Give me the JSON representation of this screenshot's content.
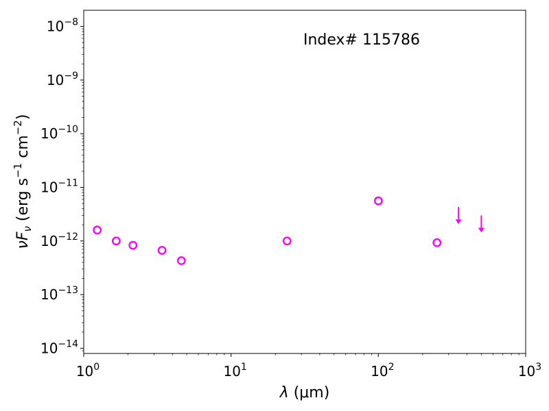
{
  "chart_data": {
    "type": "scatter",
    "annotation": "Index# 115786",
    "xlabel": {
      "symbol": "λ",
      "unit": " (μm)"
    },
    "ylabel": {
      "main": "νF",
      "sub": "ν",
      "unit_prefix": " (erg s",
      "exp1": "−1",
      "unit_mid": " cm",
      "exp2": "−2",
      "unit_suffix": ")"
    },
    "xscale": "log",
    "yscale": "log",
    "xlim": [
      1,
      1000
    ],
    "ylim": [
      8e-15,
      2e-08
    ],
    "x_ticks": [
      {
        "value": 1,
        "base": "10",
        "exp": "0"
      },
      {
        "value": 10,
        "base": "10",
        "exp": "1"
      },
      {
        "value": 100,
        "base": "10",
        "exp": "2"
      },
      {
        "value": 1000,
        "base": "10",
        "exp": "3"
      }
    ],
    "y_ticks": [
      {
        "value": 1e-14,
        "base": "10",
        "exp": "−14"
      },
      {
        "value": 1e-13,
        "base": "10",
        "exp": "−13"
      },
      {
        "value": 1e-12,
        "base": "10",
        "exp": "−12"
      },
      {
        "value": 1e-11,
        "base": "10",
        "exp": "−11"
      },
      {
        "value": 1e-10,
        "base": "10",
        "exp": "−10"
      },
      {
        "value": 1e-09,
        "base": "10",
        "exp": "−9"
      },
      {
        "value": 1e-08,
        "base": "10",
        "exp": "−8"
      }
    ],
    "grid": false,
    "marker_color": "#ff00ff",
    "series": [
      {
        "marker": "open-circle",
        "x": [
          1.235,
          1.662,
          2.159,
          3.4,
          4.6,
          24,
          100,
          250
        ],
        "y": [
          1.6e-12,
          1e-12,
          8.3e-13,
          6.7e-13,
          4.3e-13,
          1e-12,
          5.6e-12,
          9.3e-13
        ]
      },
      {
        "marker": "upper-limit-arrow",
        "x": [
          350,
          500
        ],
        "y": [
          3.3e-12,
          2.3e-12
        ]
      }
    ]
  }
}
